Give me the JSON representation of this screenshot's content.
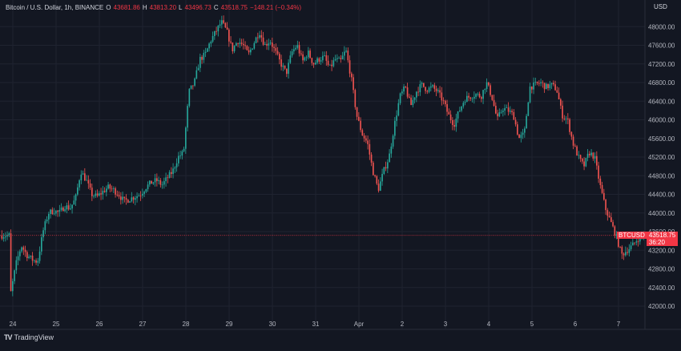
{
  "header": {
    "symbol": "Bitcoin / U.S. Dollar, 1h, BINANCE",
    "open_label": "O",
    "open": "43681.86",
    "high_label": "H",
    "high": "43813.20",
    "low_label": "L",
    "low": "43496.73",
    "close_label": "C",
    "close": "43518.75",
    "change": "−148.21 (−0.34%)"
  },
  "currency": "USD",
  "price_tag": {
    "symbol": "BTCUSD",
    "price": "43518.75",
    "countdown": "36:20"
  },
  "footer": {
    "logo": "TV",
    "brand": "TradingView"
  },
  "colors": {
    "up": "#26a69a",
    "down": "#ef5350",
    "background": "#131722",
    "grid": "#1f2330",
    "text": "#b2b5be",
    "last_price": "#f23645"
  },
  "chart_data": {
    "type": "candlestick",
    "timeframe": "1h",
    "ylim": [
      41800,
      48400
    ],
    "y_ticks": [
      42000,
      42400,
      42800,
      43200,
      43600,
      44000,
      44400,
      44800,
      45200,
      45600,
      46000,
      46400,
      46800,
      47200,
      47600,
      48000
    ],
    "x_ticks": [
      "24",
      "25",
      "26",
      "27",
      "28",
      "29",
      "30",
      "31",
      "Apr",
      "2",
      "3",
      "4",
      "5",
      "6",
      "7"
    ],
    "last_price": 43518.75,
    "grid": true,
    "path_days": [
      {
        "day": "24",
        "points": [
          42250,
          42900,
          43300,
          43100,
          43000,
          42950,
          43600,
          44000
        ]
      },
      {
        "day": "25",
        "points": [
          44050,
          44000,
          44150,
          44100,
          44300,
          44900,
          44700,
          44400
        ]
      },
      {
        "day": "26",
        "points": [
          44350,
          44450,
          44550,
          44500,
          44400,
          44250,
          44300,
          44350
        ]
      },
      {
        "day": "27",
        "points": [
          44400,
          44550,
          44650,
          44700,
          44600,
          44750,
          44900,
          45200
        ]
      },
      {
        "day": "28",
        "points": [
          45300,
          46600,
          46800,
          47300,
          47400,
          47700,
          47900,
          48100
        ]
      },
      {
        "day": "29",
        "points": [
          47900,
          47500,
          47700,
          47600,
          47400,
          47650,
          47900,
          47600
        ]
      },
      {
        "day": "30",
        "points": [
          47700,
          47450,
          47200,
          47000,
          47450,
          47600,
          47250,
          47450
        ]
      },
      {
        "day": "31",
        "points": [
          47200,
          47300,
          47350,
          47100,
          47300,
          47250,
          47500,
          46900
        ]
      },
      {
        "day": "Apr",
        "points": [
          46100,
          45700,
          45500,
          44900,
          44500,
          44900,
          45200,
          45900
        ]
      },
      {
        "day": "2",
        "points": [
          46500,
          46700,
          46300,
          46600,
          46750,
          46650,
          46700,
          46600
        ]
      },
      {
        "day": "3",
        "points": [
          46400,
          46100,
          45900,
          46200,
          46450,
          46500,
          46550,
          46500
        ]
      },
      {
        "day": "4",
        "points": [
          46800,
          46500,
          46000,
          46250,
          46200,
          46100,
          45600,
          45700
        ]
      },
      {
        "day": "5",
        "points": [
          46700,
          46750,
          46800,
          46700,
          46750,
          46650,
          46100,
          46000
        ]
      },
      {
        "day": "6",
        "points": [
          45500,
          45200,
          45000,
          45300,
          45200,
          44600,
          44100,
          43800
        ]
      },
      {
        "day": "7",
        "points": [
          43500,
          43100,
          43200,
          43300,
          43450,
          43550,
          43600,
          43520
        ]
      }
    ]
  }
}
